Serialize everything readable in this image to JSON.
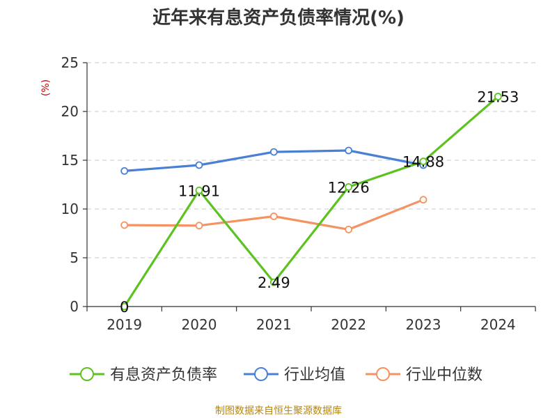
{
  "title": "近年来有息资产负债率情况(%)",
  "source": "制图数据来自恒生聚源数据库",
  "chart_data": {
    "type": "line",
    "title": "近年来有息资产负债率情况(%)",
    "ylabel": "(%)",
    "categories": [
      "2019",
      "2020",
      "2021",
      "2022",
      "2023",
      "2024"
    ],
    "ylim": [
      0,
      25
    ],
    "yticks": [
      0,
      5,
      10,
      15,
      20,
      25
    ],
    "grid": true,
    "legend_position": "bottom",
    "series": [
      {
        "name": "有息资产负债率",
        "color": "#5cc21f",
        "values": [
          0,
          11.91,
          2.49,
          12.26,
          14.88,
          21.53
        ],
        "labels": [
          "0",
          "11.91",
          "2.49",
          "12.26",
          "14.88",
          "21.53"
        ]
      },
      {
        "name": "行业均值",
        "color": "#4a7fd6",
        "values": [
          13.9,
          14.5,
          15.85,
          16.0,
          14.5,
          null
        ]
      },
      {
        "name": "行业中位数",
        "color": "#f59262",
        "values": [
          8.35,
          8.3,
          9.25,
          7.9,
          10.95,
          null
        ]
      }
    ]
  }
}
